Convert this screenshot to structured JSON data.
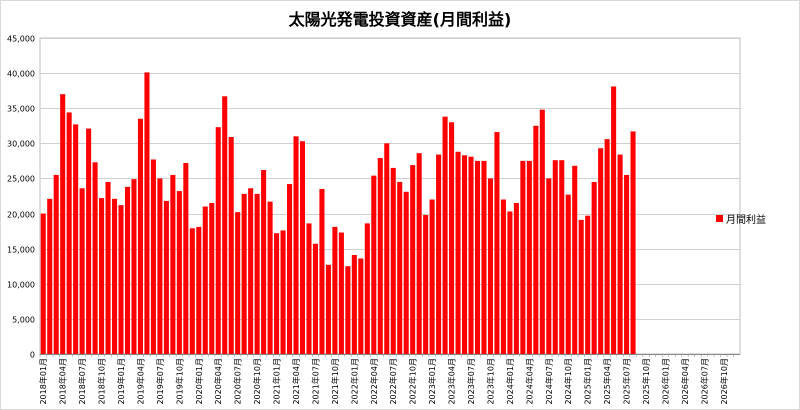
{
  "chart_data": {
    "type": "bar",
    "title": "太陽光発電投資資産(月間利益)",
    "xlabel": "",
    "ylabel": "",
    "ylim": [
      0,
      45000
    ],
    "yticks": [
      0,
      5000,
      10000,
      15000,
      20000,
      25000,
      30000,
      35000,
      40000,
      45000
    ],
    "ytick_labels": [
      "0",
      "5,000",
      "10,000",
      "15,000",
      "20,000",
      "25,000",
      "30,000",
      "35,000",
      "40,000",
      "45,000"
    ],
    "grid": true,
    "legend_position": "right",
    "bar_color": "#ff0000",
    "categories": [
      "2018年01月",
      "2018年02月",
      "2018年03月",
      "2018年04月",
      "2018年05月",
      "2018年06月",
      "2018年07月",
      "2018年08月",
      "2018年09月",
      "2018年10月",
      "2018年11月",
      "2018年12月",
      "2019年01月",
      "2019年02月",
      "2019年03月",
      "2019年04月",
      "2019年05月",
      "2019年06月",
      "2019年07月",
      "2019年08月",
      "2019年09月",
      "2019年10月",
      "2019年11月",
      "2019年12月",
      "2020年01月",
      "2020年02月",
      "2020年03月",
      "2020年04月",
      "2020年05月",
      "2020年06月",
      "2020年07月",
      "2020年08月",
      "2020年09月",
      "2020年10月",
      "2020年11月",
      "2020年12月",
      "2021年01月",
      "2021年02月",
      "2021年03月",
      "2021年04月",
      "2021年05月",
      "2021年06月",
      "2021年07月",
      "2021年08月",
      "2021年09月",
      "2021年10月",
      "2021年11月",
      "2021年12月",
      "2022年01月",
      "2022年02月",
      "2022年03月",
      "2022年04月",
      "2022年05月",
      "2022年06月",
      "2022年07月",
      "2022年08月",
      "2022年09月",
      "2022年10月",
      "2022年11月",
      "2022年12月",
      "2023年01月",
      "2023年02月",
      "2023年03月",
      "2023年04月",
      "2023年05月",
      "2023年06月",
      "2023年07月",
      "2023年08月",
      "2023年09月",
      "2023年10月",
      "2023年11月",
      "2023年12月",
      "2024年01月",
      "2024年02月",
      "2024年03月",
      "2024年04月",
      "2024年05月",
      "2024年06月",
      "2024年07月",
      "2024年08月",
      "2024年09月",
      "2024年10月",
      "2024年11月",
      "2024年12月",
      "2025年01月",
      "2025年02月",
      "2025年03月",
      "2025年04月",
      "2025年05月",
      "2025年06月",
      "2025年07月",
      "2025年08月",
      "2025年09月",
      "2025年10月",
      "2025年11月",
      "2025年12月",
      "2026年01月",
      "2026年02月",
      "2026年03月",
      "2026年04月",
      "2026年05月",
      "2026年06月",
      "2026年07月",
      "2026年08月",
      "2026年09月",
      "2026年10月",
      "2026年11月",
      "2026年12月"
    ],
    "x_tick_labels_every": 3,
    "series": [
      {
        "name": "月間利益",
        "values": [
          20000,
          22100,
          25500,
          37000,
          34400,
          32700,
          23600,
          32100,
          27300,
          22200,
          24500,
          22100,
          21200,
          23800,
          24900,
          33500,
          40100,
          27700,
          25000,
          21800,
          25500,
          23200,
          27200,
          17900,
          18100,
          21000,
          21500,
          32300,
          36700,
          30900,
          20200,
          22800,
          23600,
          22800,
          26200,
          21700,
          17200,
          17600,
          24200,
          31000,
          30300,
          18600,
          15700,
          23500,
          12700,
          18100,
          17300,
          12500,
          14100,
          13600,
          18600,
          25400,
          27900,
          30000,
          26500,
          24500,
          23100,
          26900,
          28600,
          19800,
          22000,
          28400,
          33800,
          33000,
          28800,
          28300,
          28100,
          27500,
          27500,
          25000,
          31600,
          22000,
          20300,
          21500,
          27500,
          27500,
          32500,
          34800,
          25000,
          27600,
          27600,
          22700,
          26800,
          19100,
          19700,
          24500,
          29300,
          30600,
          38100,
          28400,
          25500,
          31700,
          null,
          null,
          null,
          null,
          null,
          null,
          null,
          null,
          null,
          null,
          null,
          null,
          null,
          null,
          null,
          null
        ]
      }
    ]
  },
  "legend": {
    "label": "月間利益"
  }
}
